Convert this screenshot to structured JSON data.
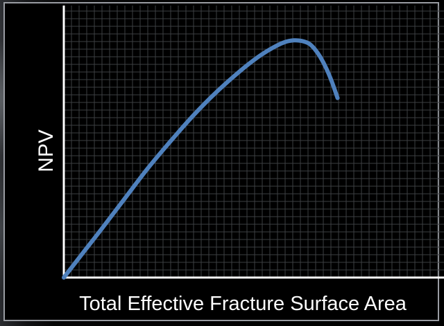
{
  "colors": {
    "background": "#000000",
    "frame_border": "#9a9da3",
    "grid": "#3d3f42",
    "axes": "#ffffff",
    "series": "#4f81bd",
    "text": "#ffffff"
  },
  "chart_data": {
    "type": "line",
    "title": "",
    "xlabel": "Total Effective Fracture Surface Area",
    "ylabel": "NPV",
    "grid": true,
    "xlim": [
      0,
      10
    ],
    "ylim": [
      0,
      10
    ],
    "series": [
      {
        "color": "#4f81bd",
        "x": [
          0,
          0.5,
          1.0,
          1.6,
          2.2,
          2.8,
          3.4,
          4.0,
          4.6,
          5.1,
          5.5,
          5.8,
          6.05,
          6.25,
          6.45,
          6.6,
          6.75,
          6.9,
          7.05,
          7.2
        ],
        "y": [
          0,
          0.9,
          1.8,
          2.9,
          4.0,
          5.0,
          5.95,
          6.8,
          7.55,
          8.1,
          8.45,
          8.65,
          8.72,
          8.7,
          8.6,
          8.4,
          8.1,
          7.7,
          7.2,
          6.6
        ]
      }
    ]
  }
}
